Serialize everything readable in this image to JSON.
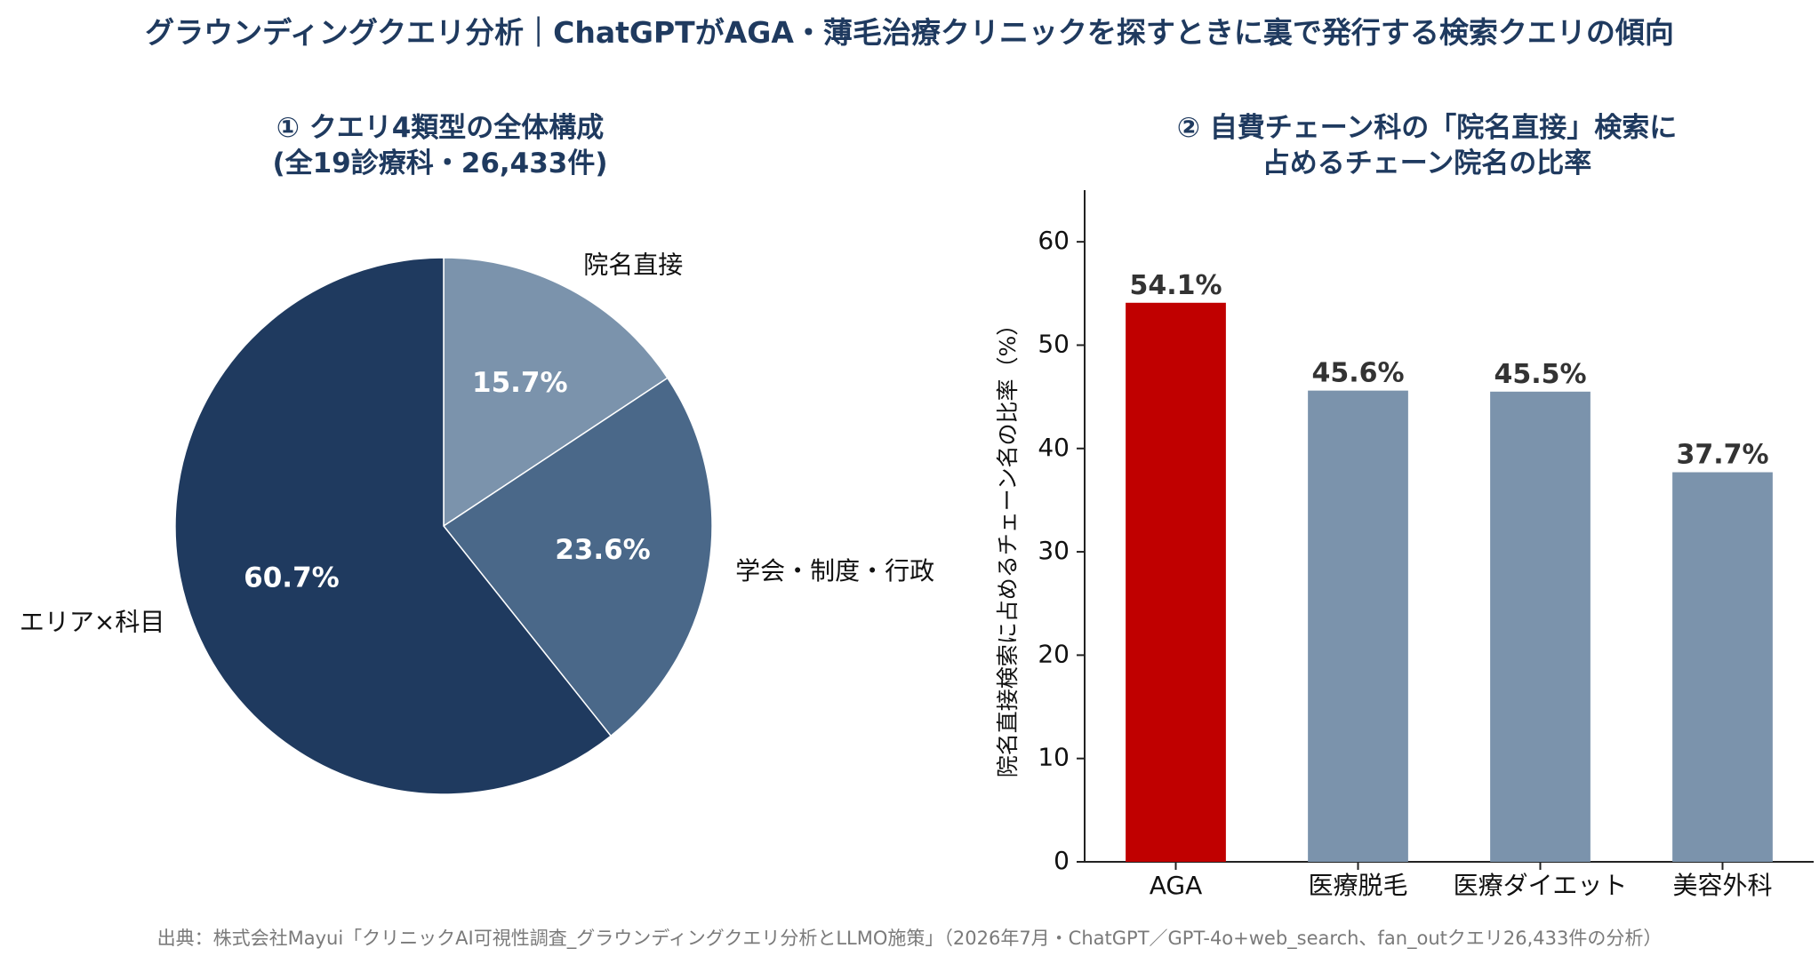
{
  "title": "グラウンディングクエリ分析｜ChatGPTがAGA・薄毛治療クリニックを探すときに裏で発行する検索クエリの傾向",
  "source": "出典：株式会社Mayui「クリニックAI可視性調査_グラウンディングクエリ分析とLLMO施策」（2026年7月・ChatGPT／GPT-4o+web_search、fan_outクエリ26,433件の分析）",
  "chart_data": [
    {
      "type": "pie",
      "title_lines": [
        "① クエリ4類型の全体構成",
        "(全19診療科・26,433件)"
      ],
      "slices": [
        {
          "label": "院名直接",
          "value": 15.7,
          "value_label": "15.7%",
          "color": "#7b93ac"
        },
        {
          "label": "学会・制度・行政",
          "value": 23.6,
          "value_label": "23.6%",
          "color": "#4a6889"
        },
        {
          "label": "エリア×科目",
          "value": 60.7,
          "value_label": "60.7%",
          "color": "#1f3a5f"
        }
      ],
      "start_angle_deg": 90,
      "direction": "clockwise"
    },
    {
      "type": "bar",
      "title_lines": [
        "② 自費チェーン科の「院名直接」検索に",
        "占めるチェーン院名の比率"
      ],
      "ylabel": "院名直接検索に占めるチェーン名の比率（%）",
      "ylim": [
        0,
        65
      ],
      "yticks": [
        0,
        10,
        20,
        30,
        40,
        50,
        60
      ],
      "categories": [
        "AGA",
        "医療脱毛",
        "医療ダイエット",
        "美容外科"
      ],
      "values": [
        54.1,
        45.6,
        45.5,
        37.7
      ],
      "value_labels": [
        "54.1%",
        "45.6%",
        "45.5%",
        "37.7%"
      ],
      "colors": [
        "#c00000",
        "#7b93ac",
        "#7b93ac",
        "#7b93ac"
      ],
      "grid": false
    }
  ]
}
